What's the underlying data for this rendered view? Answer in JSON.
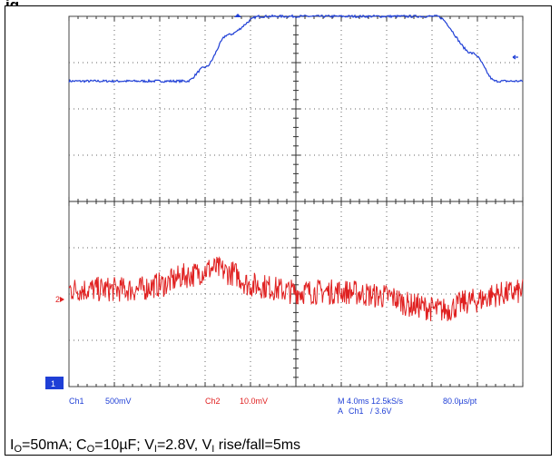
{
  "figure_title": "ig",
  "caption": {
    "io_label": "I",
    "io_sub": "O",
    "io_val": "=50mA; ",
    "co_label": "C",
    "co_sub": "O",
    "co_val": "=10µF; ",
    "vi_label": "V",
    "vi_sub": "I",
    "vi_val": "=2.8V, ",
    "vir_label": "V",
    "vir_sub": "I",
    "vir_val": " rise/fall=5ms"
  },
  "scope": {
    "ch1_marker": "1",
    "ch2_marker": "2",
    "status": {
      "ch1_name": "Ch1",
      "ch1_scale": "500mV",
      "ch2_name": "Ch2",
      "ch2_scale": "10.0mV",
      "timebase": "M 4.0ms 12.5kS/s",
      "trigger_prefix": "A",
      "trigger_ch": "Ch1",
      "trigger_level": "/ 3.6V",
      "resolution": "80.0µs/pt"
    },
    "colors": {
      "ch1": "#1f3fd6",
      "ch2": "#e02020",
      "grid": "#444444",
      "label": "#1f3fd6"
    }
  },
  "chart_data": {
    "type": "line",
    "x_divisions": 10,
    "y_divisions": 8,
    "x_unit": "ms/div",
    "x_scale": 4.0,
    "series": [
      {
        "channel": "Ch1",
        "scale": "500mV/div",
        "x_div": [
          0,
          2.6,
          3.0,
          3.5,
          4.2,
          8.1,
          8.9,
          9.4,
          10
        ],
        "y_div": [
          2.6,
          2.6,
          2.9,
          3.6,
          4.0,
          4.0,
          3.2,
          2.6,
          2.6
        ]
      },
      {
        "channel": "Ch2",
        "scale": "10.0mV/div",
        "x_div": [
          0,
          1.5,
          2.0,
          2.6,
          3.2,
          3.6,
          4.0,
          5.0,
          6.0,
          7.0,
          7.6,
          8.2,
          8.9,
          9.5,
          10
        ],
        "y_div": [
          -1.9,
          -1.9,
          -1.8,
          -1.6,
          -1.45,
          -1.55,
          -1.8,
          -1.95,
          -1.95,
          -2.05,
          -2.25,
          -2.35,
          -2.15,
          -2.0,
          -1.95
        ]
      }
    ]
  }
}
